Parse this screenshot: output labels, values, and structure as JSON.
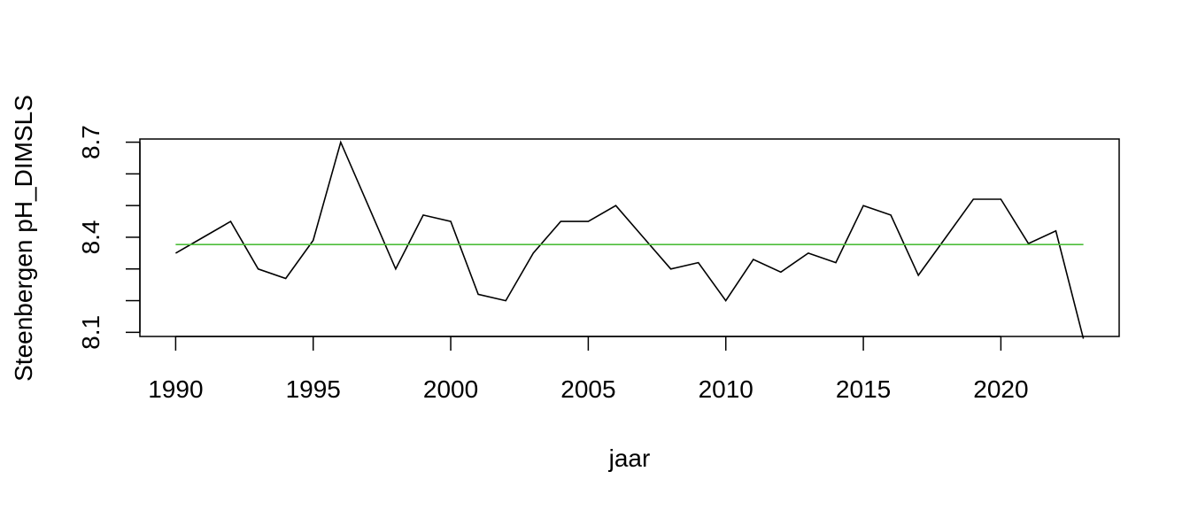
{
  "chart_data": {
    "type": "line",
    "title": "",
    "xlabel": "jaar",
    "ylabel": "Steenbergen pH_DIMSLS",
    "xlim": [
      1988.7,
      2024.3
    ],
    "ylim": [
      8.087,
      8.71
    ],
    "x_ticks": [
      "1990",
      "1995",
      "2000",
      "2005",
      "2010",
      "2015",
      "2020"
    ],
    "y_ticks": [
      "8.1",
      "8.4",
      "8.7"
    ],
    "y_minor_ticks": [
      8.1,
      8.2,
      8.3,
      8.4,
      8.5,
      8.6,
      8.7
    ],
    "grid": false,
    "legend": "none",
    "series": [
      {
        "color": "#000000",
        "x": [
          1990,
          1991,
          1992,
          1993,
          1994,
          1995,
          1996,
          1997,
          1998,
          1999,
          2000,
          2001,
          2002,
          2003,
          2004,
          2005,
          2006,
          2007,
          2008,
          2009,
          2010,
          2011,
          2012,
          2013,
          2014,
          2015,
          2016,
          2017,
          2018,
          2019,
          2020,
          2021,
          2022,
          2023
        ],
        "y": [
          8.35,
          8.4,
          8.45,
          8.3,
          8.27,
          8.39,
          8.7,
          8.5,
          8.3,
          8.47,
          8.45,
          8.22,
          8.2,
          8.35,
          8.45,
          8.45,
          8.5,
          8.4,
          8.3,
          8.32,
          8.2,
          8.33,
          8.29,
          8.35,
          8.32,
          8.5,
          8.47,
          8.28,
          8.4,
          8.52,
          8.52,
          8.38,
          8.42,
          8.08
        ]
      }
    ],
    "reference_line": {
      "y": 8.377,
      "x_from": 1990,
      "x_to": 2023,
      "color": "#4dbd3a"
    }
  }
}
